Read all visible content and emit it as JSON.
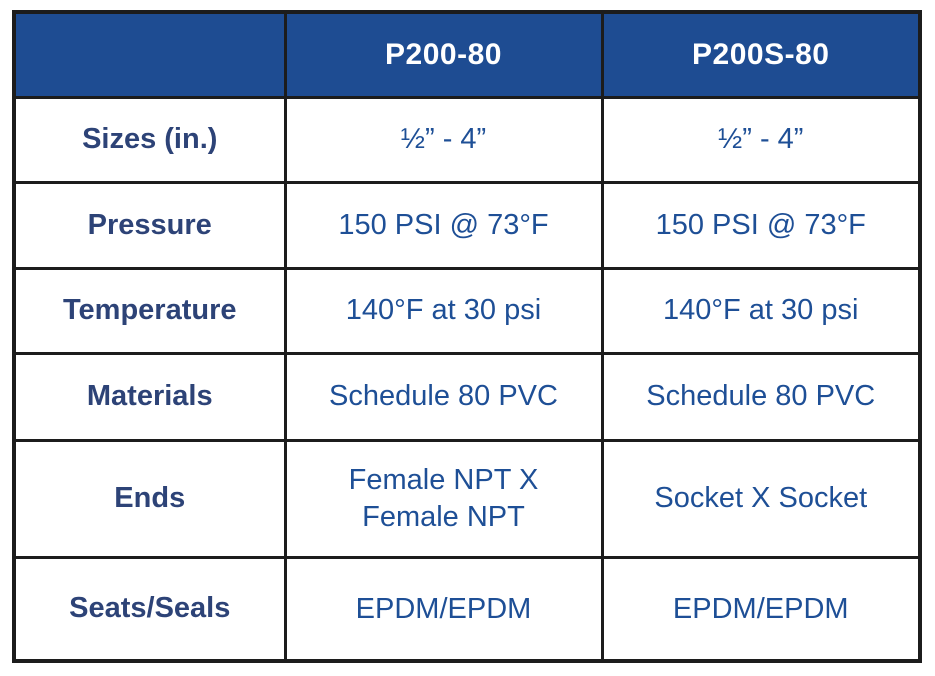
{
  "table": {
    "columns": {
      "blank": "",
      "col1": "P200-80",
      "col2": "P200S-80"
    },
    "rows": [
      {
        "label": "Sizes (in.)",
        "p200": "½” - 4”",
        "p200s": "½” - 4”"
      },
      {
        "label": "Pressure",
        "p200": "150 PSI @ 73°F",
        "p200s": "150 PSI @ 73°F"
      },
      {
        "label": "Temperature",
        "p200": "140°F at 30 psi",
        "p200s": "140°F at 30 psi"
      },
      {
        "label": "Materials",
        "p200": "Schedule 80 PVC",
        "p200s": "Schedule 80 PVC"
      },
      {
        "label": "Ends",
        "p200": "Female NPT X\nFemale NPT",
        "p200s": "Socket X Socket"
      },
      {
        "label": "Seats/Seals",
        "p200": "EPDM/EPDM",
        "p200s": "EPDM/EPDM"
      }
    ],
    "colors": {
      "header_bg": "#1e4c92",
      "header_text": "#ffffff",
      "label_text": "#2d4377",
      "value_text": "#1e4f96",
      "border": "#1c1c1c",
      "background": "#ffffff"
    }
  }
}
